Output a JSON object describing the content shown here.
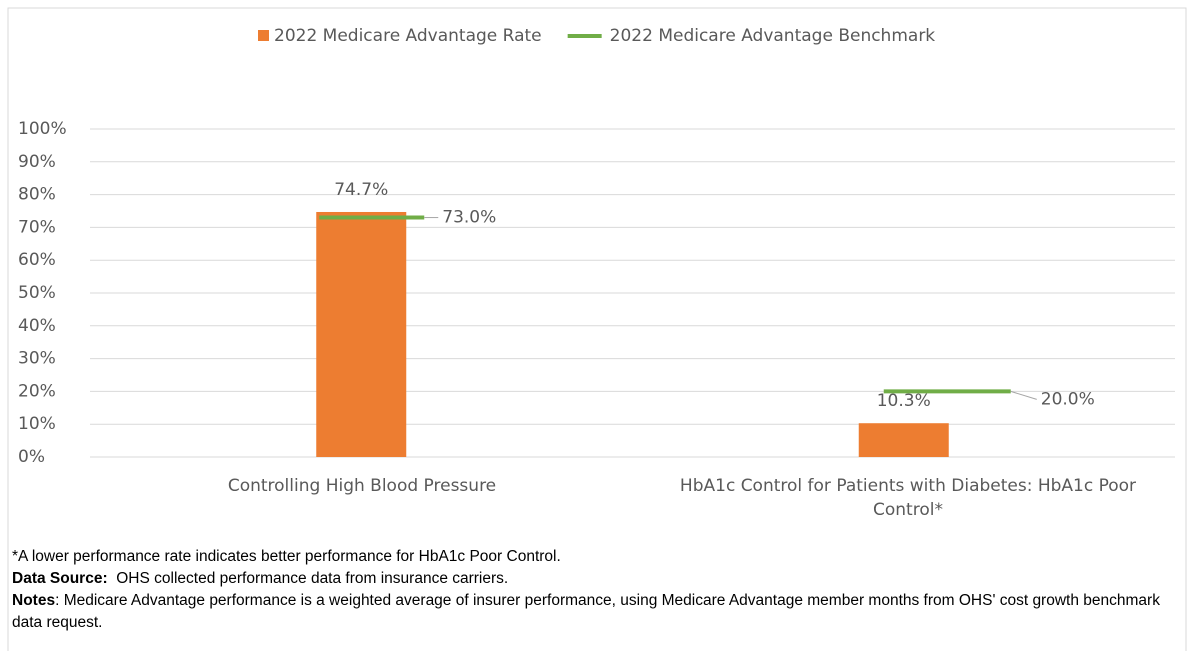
{
  "chart_data": {
    "type": "bar",
    "categories": [
      "Controlling High Blood Pressure",
      "HbA1c Control for Patients with Diabetes: HbA1c Poor Control*"
    ],
    "series": [
      {
        "name": "2022 Medicare Advantage Rate",
        "type": "bar",
        "color": "#ed7d31",
        "values": [
          74.7,
          10.3
        ],
        "value_labels": [
          "74.7%",
          "10.3%"
        ]
      },
      {
        "name": "2022 Medicare Advantage Benchmark",
        "type": "marker",
        "color": "#70ad47",
        "values": [
          73.0,
          20.0
        ],
        "value_labels": [
          "73.0%",
          "20.0%"
        ]
      }
    ],
    "ylim": [
      0,
      100
    ],
    "yticks": [
      {
        "value": 0,
        "label": "0%"
      },
      {
        "value": 10,
        "label": "10%"
      },
      {
        "value": 20,
        "label": "20%"
      },
      {
        "value": 30,
        "label": "30%"
      },
      {
        "value": 40,
        "label": "40%"
      },
      {
        "value": 50,
        "label": "50%"
      },
      {
        "value": 60,
        "label": "60%"
      },
      {
        "value": 70,
        "label": "70%"
      },
      {
        "value": 80,
        "label": "80%"
      },
      {
        "value": 90,
        "label": "90%"
      },
      {
        "value": 100,
        "label": "100%"
      }
    ],
    "grid": true,
    "legend": "top"
  },
  "notes": {
    "footnote": "*A lower performance rate indicates better performance for HbA1c Poor Control.",
    "data_source": {
      "label": "Data Source:",
      "text": "OHS collected performance data from insurance carriers."
    },
    "notes": {
      "label": "Notes",
      "text": ": Medicare Advantage performance is a weighted average of insurer performance, using Medicare Advantage member months from OHS' cost growth benchmark data request."
    }
  }
}
